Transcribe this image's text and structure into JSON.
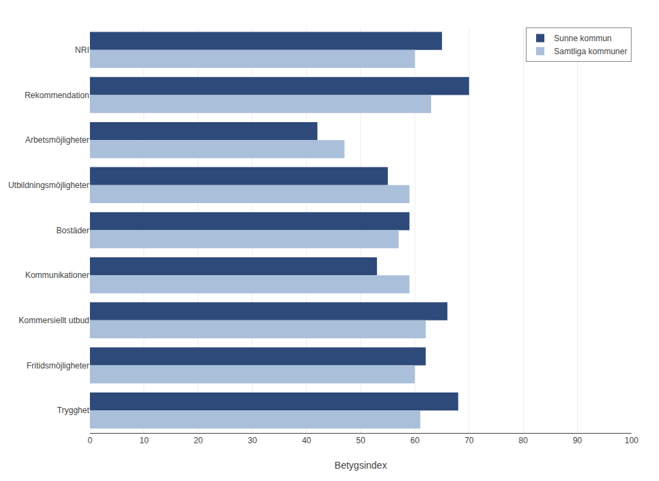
{
  "chart_data": {
    "type": "bar",
    "orientation": "horizontal",
    "categories": [
      "NRI",
      "Rekommendation",
      "Arbetsmöjligheter",
      "Utbildningsmöjligheter",
      "Bostäder",
      "Kommunikationer",
      "Kommersiellt utbud",
      "Fritidsmöjligheter",
      "Trygghet"
    ],
    "series": [
      {
        "name": "Sunne kommun",
        "color": "#2E4A7A",
        "values": [
          65,
          70,
          42,
          55,
          59,
          53,
          66,
          62,
          68
        ]
      },
      {
        "name": "Samtliga kommuner",
        "color": "#AABFDA",
        "values": [
          60,
          63,
          47,
          59,
          57,
          59,
          62,
          60,
          61
        ]
      }
    ],
    "xlabel": "Betygsindex",
    "xlim": [
      0,
      100
    ],
    "xticks": [
      0,
      10,
      20,
      30,
      40,
      50,
      60,
      70,
      80,
      90,
      100
    ],
    "grid": true,
    "legend": "upper right"
  }
}
